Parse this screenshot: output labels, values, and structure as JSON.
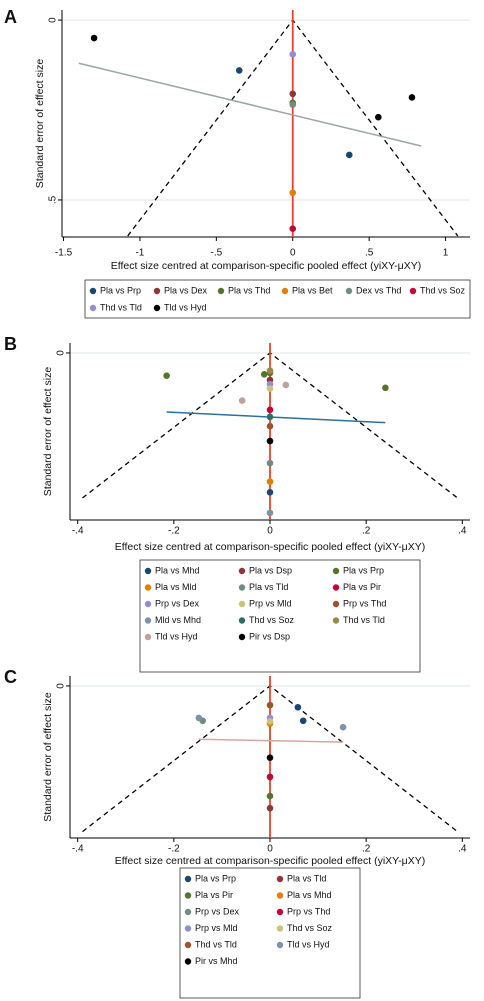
{
  "chart_data": [
    {
      "type": "funnel",
      "panel_label": "A",
      "xlabel": "Effect size centred at comparison-specific pooled effect (yiXY-μXY)",
      "ylabel": "Standard error of effect size",
      "xlim": [
        -1.51,
        1.16
      ],
      "ylim": [
        -0.028,
        0.603
      ],
      "y_reversed": true,
      "xticks": [
        -1.5,
        -1,
        {
          "value": -0.5,
          "label": "-.5"
        },
        0,
        {
          "value": 0.5,
          "label": ".5"
        },
        1
      ],
      "yticks": [
        0,
        {
          "value": 0.5,
          "label": ".5"
        }
      ],
      "grid": true,
      "reference_x": 0,
      "reference_color": "#e8432e",
      "funnel": {
        "x": [
          -1.08,
          0,
          1.08
        ],
        "y": [
          0.6,
          0,
          0.6
        ]
      },
      "fit_line": {
        "x": [
          -1.4,
          0.84
        ],
        "y": [
          0.12,
          0.35
        ],
        "color": "#9aa5a5"
      },
      "series": [
        {
          "name": "Pla vs Prp",
          "color": "#1a476f",
          "x": [
            -0.35,
            0.37
          ],
          "values": [
            0.14,
            0.375
          ]
        },
        {
          "name": "Pla vs Dex",
          "color": "#90353b",
          "x": [
            0
          ],
          "values": [
            0.205
          ]
        },
        {
          "name": "Pla vs Thd",
          "color": "#55752f",
          "x": [
            0
          ],
          "values": [
            0.23
          ]
        },
        {
          "name": "Pla vs Bet",
          "color": "#e37e00",
          "x": [
            0
          ],
          "values": [
            0.48
          ]
        },
        {
          "name": "Dex vs Thd",
          "color": "#6e8e84",
          "x": [
            0
          ],
          "values": [
            0.235
          ]
        },
        {
          "name": "Thd vs Soz",
          "color": "#c10534",
          "x": [
            0
          ],
          "values": [
            0.58
          ]
        },
        {
          "name": "Thd vs Tld",
          "color": "#938dd2",
          "x": [
            0
          ],
          "values": [
            0.095
          ]
        },
        {
          "name": "Tld vs Hyd",
          "color": "#000000",
          "x": [
            -1.3,
            0.56,
            0.78
          ],
          "values": [
            0.05,
            0.27,
            0.215
          ]
        }
      ]
    },
    {
      "type": "funnel",
      "panel_label": "B",
      "xlabel": "Effect size centred at comparison-specific pooled effect (yiXY-μXY)",
      "ylabel": "Standard error of effect size",
      "xlim": [
        -0.416,
        0.416
      ],
      "ylim": [
        -0.014,
        0.235
      ],
      "y_reversed": true,
      "xticks": [
        {
          "value": -0.4,
          "label": "-.4"
        },
        {
          "value": -0.2,
          "label": "-.2"
        },
        0,
        {
          "value": 0.2,
          "label": ".2"
        },
        {
          "value": 0.4,
          "label": ".4"
        }
      ],
      "yticks": [
        0
      ],
      "grid": true,
      "reference_x": 0,
      "reference_color": "#e8432e",
      "funnel": {
        "x": [
          -0.39,
          0,
          0.39
        ],
        "y": [
          0.204,
          0,
          0.204
        ]
      },
      "fit_line": {
        "x": [
          -0.215,
          0.24
        ],
        "y": [
          0.083,
          0.098
        ],
        "color": "#2a6fa0"
      },
      "series": [
        {
          "name": "Pla vs Mhd",
          "color": "#1a476f",
          "x": [
            0
          ],
          "values": [
            0.196
          ]
        },
        {
          "name": "Pla vs Dsp",
          "color": "#90353b",
          "x": [
            0
          ],
          "values": [
            0.038
          ]
        },
        {
          "name": "Pla vs Prp",
          "color": "#55752f",
          "x": [
            -0.215,
            -0.012,
            0,
            0.24
          ],
          "values": [
            0.032,
            0.03,
            0.028,
            0.049
          ]
        },
        {
          "name": "Pla vs Mld",
          "color": "#e37e00",
          "x": [
            0
          ],
          "values": [
            0.181
          ]
        },
        {
          "name": "Pla vs Tld",
          "color": "#6e8e84",
          "x": [
            0
          ],
          "values": [
            0.155
          ]
        },
        {
          "name": "Pla vs Pir",
          "color": "#c10534",
          "x": [
            0
          ],
          "values": [
            0.08
          ]
        },
        {
          "name": "Prp vs Dex",
          "color": "#938dd2",
          "x": [
            0
          ],
          "values": [
            0.044
          ]
        },
        {
          "name": "Prp vs Mld",
          "color": "#cac27e",
          "x": [
            0
          ],
          "values": [
            0.05
          ]
        },
        {
          "name": "Prp vs Thd",
          "color": "#a0522d",
          "x": [
            0
          ],
          "values": [
            0.103
          ]
        },
        {
          "name": "Mld vs Mhd",
          "color": "#7b92a8",
          "x": [
            0
          ],
          "values": [
            0.225
          ]
        },
        {
          "name": "Thd vs Soz",
          "color": "#2d6d66",
          "x": [
            0
          ],
          "values": [
            0.09
          ]
        },
        {
          "name": "Thd vs Tld",
          "color": "#9c8847",
          "x": [
            0
          ],
          "values": [
            0.025
          ]
        },
        {
          "name": "Tld vs Hyd",
          "color": "#bfa19c",
          "x": [
            -0.058,
            0.033
          ],
          "values": [
            0.067,
            0.045
          ]
        },
        {
          "name": "Pir vs Dsp",
          "color": "#000000",
          "x": [
            0
          ],
          "values": [
            0.124
          ]
        }
      ]
    },
    {
      "type": "funnel",
      "panel_label": "C",
      "xlabel": "Effect size centred at comparison-specific pooled effect (yiXY-μXY)",
      "ylabel": "Standard error of effect size",
      "xlim": [
        -0.416,
        0.416
      ],
      "ylim": [
        -0.014,
        0.214
      ],
      "y_reversed": true,
      "xticks": [
        {
          "value": -0.4,
          "label": "-.4"
        },
        {
          "value": -0.2,
          "label": "-.2"
        },
        0,
        {
          "value": 0.2,
          "label": ".2"
        },
        {
          "value": 0.4,
          "label": ".4"
        }
      ],
      "yticks": [
        0
      ],
      "grid": true,
      "reference_x": 0,
      "reference_color": "#e8432e",
      "funnel": {
        "x": [
          -0.39,
          0,
          0.39
        ],
        "y": [
          0.205,
          0,
          0.205
        ]
      },
      "fit_line": {
        "x": [
          -0.148,
          0.152
        ],
        "y": [
          0.075,
          0.079
        ],
        "color": "#d9a5a0"
      },
      "series": [
        {
          "name": "Pla vs Prp",
          "color": "#1a476f",
          "x": [
            0.058,
            0.069
          ],
          "values": [
            0.03,
            0.049
          ]
        },
        {
          "name": "Pla vs Tld",
          "color": "#90353b",
          "x": [
            0
          ],
          "values": [
            0.172
          ]
        },
        {
          "name": "Pla vs Pir",
          "color": "#55752f",
          "x": [
            0
          ],
          "values": [
            0.155
          ]
        },
        {
          "name": "Pla vs Mhd",
          "color": "#e37e00",
          "x": [
            0
          ],
          "values": [
            0.053
          ]
        },
        {
          "name": "Prp vs Dex",
          "color": "#6e8e84",
          "x": [
            -0.14
          ],
          "values": [
            0.049
          ]
        },
        {
          "name": "Prp vs Thd",
          "color": "#c10534",
          "x": [
            0
          ],
          "values": [
            0.128
          ]
        },
        {
          "name": "Prp vs Mld",
          "color": "#938dd2",
          "x": [
            0
          ],
          "values": [
            0.045
          ]
        },
        {
          "name": "Thd vs Soz",
          "color": "#cac27e",
          "x": [
            0
          ],
          "values": [
            0.05
          ]
        },
        {
          "name": "Thd vs Tld",
          "color": "#a0522d",
          "x": [
            0
          ],
          "values": [
            0.027
          ]
        },
        {
          "name": "Tld vs Hyd",
          "color": "#7b92a8",
          "x": [
            -0.148,
            0.152
          ],
          "values": [
            0.045,
            0.058
          ]
        },
        {
          "name": "Pir vs Mhd",
          "color": "#000000",
          "x": [
            0
          ],
          "values": [
            0.101
          ]
        }
      ]
    }
  ]
}
